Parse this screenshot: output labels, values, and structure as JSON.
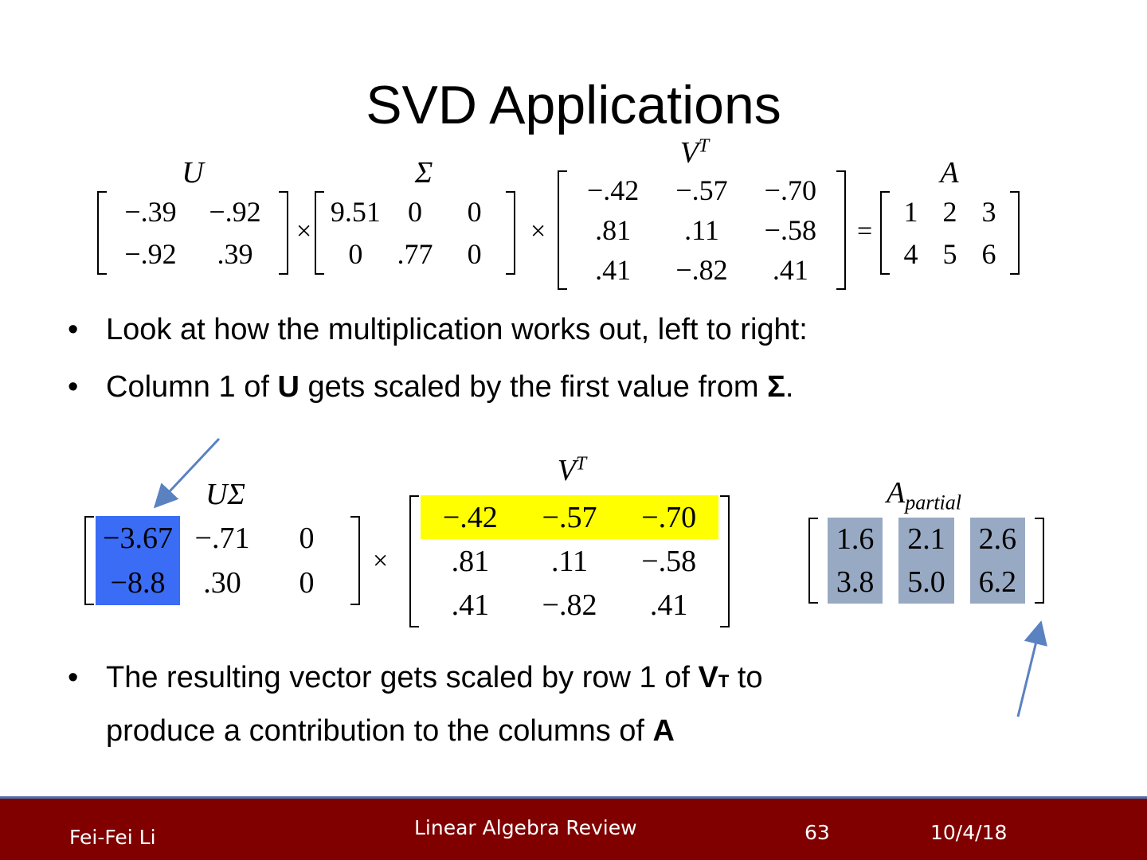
{
  "slide": {
    "title": "SVD Applications",
    "bullets": [
      {
        "text": "Look at how the multiplication works out, left to right:"
      },
      {
        "pre": "Column 1 of ",
        "bold1": "U",
        "mid": " gets scaled by the first value from ",
        "bold2": "Σ",
        "post": "."
      },
      {
        "pre": "The resulting vector gets scaled by row 1 of ",
        "bold1": "V",
        "sup": "T",
        "mid": " to",
        "line2": "produce a contribution to the columns of ",
        "bold2": "A"
      }
    ],
    "bullet_glyph": "•"
  },
  "equation_top": {
    "U": {
      "label": "U",
      "rows": [
        [
          "−.39",
          "−.92"
        ],
        [
          "−.92",
          ".39"
        ]
      ]
    },
    "Sigma": {
      "label": "Σ",
      "rows": [
        [
          "9.51",
          "0",
          "0"
        ],
        [
          "0",
          ".77",
          "0"
        ]
      ]
    },
    "VT": {
      "label": "V",
      "sup": "T",
      "rows": [
        [
          "−.42",
          "−.57",
          "−.70"
        ],
        [
          ".81",
          ".11",
          "−.58"
        ],
        [
          ".41",
          "−.82",
          ".41"
        ]
      ]
    },
    "A": {
      "label": "A",
      "rows": [
        [
          "1",
          "2",
          "3"
        ],
        [
          "4",
          "5",
          "6"
        ]
      ]
    },
    "times": "×",
    "equals": "="
  },
  "equation_bottom": {
    "USigma": {
      "label": "UΣ",
      "rows": [
        [
          "−3.67",
          "−.71",
          "0"
        ],
        [
          "−8.8",
          ".30",
          "0"
        ]
      ],
      "highlight": "column 1",
      "highlight_color": "#3b6cf5"
    },
    "VT": {
      "label": "V",
      "sup": "T",
      "rows": [
        [
          "−.42",
          "−.57",
          "−.70"
        ],
        [
          ".81",
          ".11",
          "−.58"
        ],
        [
          ".41",
          "−.82",
          ".41"
        ]
      ],
      "highlight": "row 1",
      "highlight_color": "#ffff00"
    },
    "A_partial": {
      "label": "A",
      "sub": "partial",
      "rows": [
        [
          "1.6",
          "2.1",
          "2.6"
        ],
        [
          "3.8",
          "5.0",
          "6.2"
        ]
      ],
      "highlight": "all columns",
      "highlight_color": "#98a9c3"
    },
    "times": "×",
    "arrow_color": "#5a82c0"
  },
  "footer": {
    "author": "Fei-Fei Li",
    "course": "Linear Algebra Review",
    "page": "63",
    "date": "10/4/18",
    "background": "#800000"
  }
}
